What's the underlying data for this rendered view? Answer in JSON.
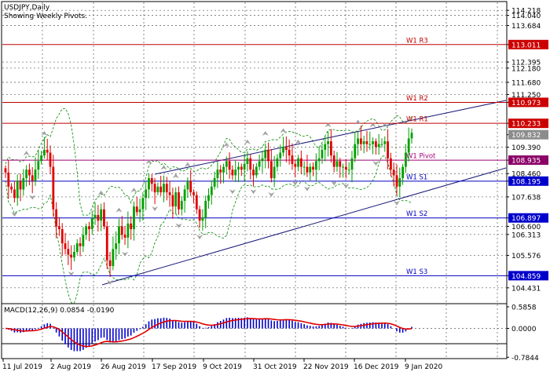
{
  "header": {
    "symbol_line": "USDJPY,Daily",
    "sub_line": "Showing Weekly Pivots."
  },
  "colors": {
    "background": "#ffffff",
    "grid": "#5a5a5a",
    "bull": "#00a000",
    "bear": "#e00000",
    "pivot": "#c00000",
    "support": "#0000c0",
    "pivot_label": "#a0007a",
    "channel": "#1a1a7a",
    "envelope": "#008800",
    "macd_hist": "#0000cc",
    "macd_signal": "#e00000",
    "marker": "#a0a0a0"
  },
  "chart_data": [
    {
      "type": "candlestick",
      "title": "USDJPY,Daily",
      "subtitle": "Showing Weekly Pivots.",
      "ylim": [
        103.9,
        114.5
      ],
      "y_tick_labels": [
        "114.218",
        "114.040",
        "113.684",
        "113.011",
        "112.395",
        "112.180",
        "111.680",
        "111.250",
        "110.973",
        "110.233",
        "109.832",
        "109.390",
        "108.935",
        "108.460",
        "108.195",
        "107.638",
        "106.897",
        "106.600",
        "106.313",
        "105.576",
        "104.859",
        "104.431"
      ],
      "x_tick_labels": [
        "11 Jul 2019",
        "2 Aug 2019",
        "26 Aug 2019",
        "17 Sep 2019",
        "9 Oct 2019",
        "31 Oct 2019",
        "22 Nov 2019",
        "16 Dec 2019",
        "9 Jan 2020"
      ],
      "highlighted_labels": [
        {
          "value": "113.011",
          "color": "#cc0000"
        },
        {
          "value": "110.973",
          "color": "#cc0000"
        },
        {
          "value": "110.233",
          "color": "#cc0000"
        },
        {
          "value": "108.935",
          "color": "#8b0066"
        },
        {
          "value": "108.195",
          "color": "#0000cc"
        },
        {
          "value": "106.897",
          "color": "#0000cc"
        },
        {
          "value": "104.859",
          "color": "#0000cc"
        }
      ],
      "current_price": "109.832",
      "weekly_pivots": [
        {
          "name": "W1 R3",
          "value": 113.011,
          "kind": "resistance"
        },
        {
          "name": "W1 R2",
          "value": 110.973,
          "kind": "resistance"
        },
        {
          "name": "W1 R1",
          "value": 110.233,
          "kind": "resistance"
        },
        {
          "name": "W1 Pivot",
          "value": 108.935,
          "kind": "pivot"
        },
        {
          "name": "W1 S1",
          "value": 108.195,
          "kind": "support"
        },
        {
          "name": "W1 S2",
          "value": 106.897,
          "kind": "support"
        },
        {
          "name": "W1 S3",
          "value": 104.859,
          "kind": "support"
        }
      ],
      "closes": [
        108.5,
        108.0,
        107.9,
        107.6,
        108.2,
        107.9,
        108.3,
        108.6,
        108.4,
        108.2,
        108.6,
        108.9,
        109.1,
        109.3,
        109.2,
        108.7,
        107.2,
        106.6,
        106.5,
        106.0,
        105.8,
        105.6,
        105.5,
        105.7,
        106.0,
        105.9,
        106.3,
        106.6,
        106.5,
        106.9,
        107.0,
        106.8,
        107.2,
        106.6,
        105.4,
        105.2,
        105.8,
        106.0,
        106.6,
        106.3,
        106.2,
        106.7,
        106.5,
        107.3,
        107.1,
        107.2,
        107.6,
        107.9,
        108.3,
        108.1,
        107.8,
        108.0,
        107.8,
        108.1,
        107.8,
        107.7,
        107.3,
        107.8,
        107.2,
        107.5,
        107.9,
        108.2,
        107.8,
        107.7,
        107.2,
        106.8,
        106.9,
        107.5,
        107.7,
        108.0,
        108.3,
        108.6,
        108.5,
        108.7,
        108.9,
        108.6,
        108.4,
        108.6,
        108.7,
        108.6,
        108.8,
        109.0,
        108.6,
        108.4,
        108.7,
        108.9,
        109.0,
        109.3,
        108.9,
        108.3,
        108.7,
        109.0,
        109.2,
        109.4,
        109.3,
        109.1,
        108.8,
        108.7,
        109.0,
        108.7,
        108.7,
        108.5,
        108.7,
        108.6,
        108.9,
        109.0,
        109.3,
        109.5,
        109.6,
        109.1,
        108.7,
        108.9,
        108.7,
        108.7,
        108.6,
        108.6,
        109.0,
        109.5,
        109.7,
        109.5,
        109.6,
        109.5,
        109.5,
        109.6,
        109.4,
        109.5,
        109.5,
        109.6,
        109.0,
        108.6,
        108.4,
        108.0,
        108.3,
        108.7,
        109.2,
        109.7,
        109.9
      ],
      "indicator": {
        "label": "MACD(12,26,9) 0.0854 -0.0190",
        "name": "MACD(12,26,9)",
        "main": 0.0854,
        "signal": -0.019,
        "y_tick_labels": [
          "0.5858",
          "0.0000",
          "-0.7844"
        ],
        "ylim": [
          -0.8,
          0.65
        ]
      }
    }
  ]
}
